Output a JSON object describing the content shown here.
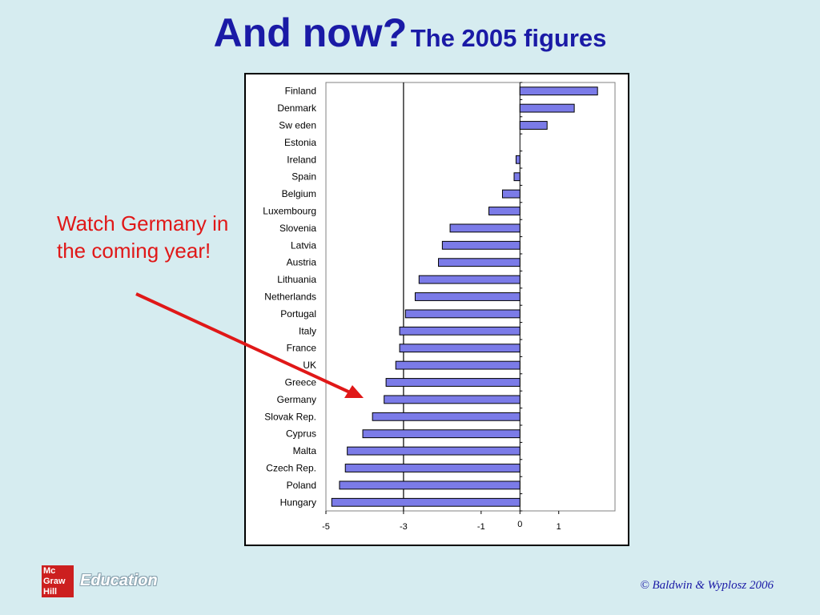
{
  "slide": {
    "title_main": "And now?",
    "title_sub": "The 2005 figures",
    "note": "Watch Germany in the coming year!",
    "logo_lines": [
      "Mc",
      "Graw",
      "Hill"
    ],
    "logo_word": "Education",
    "copyright": "© Baldwin & Wyplosz 2006"
  },
  "colors": {
    "title": "#1a1aa6",
    "note": "#e01818",
    "bar_fill": "#7b7be8",
    "background": "#d6ecf0"
  },
  "chart_data": {
    "type": "bar",
    "orientation": "horizontal",
    "categories": [
      "Finland",
      "Denmark",
      "Sw eden",
      "Estonia",
      "Ireland",
      "Spain",
      "Belgium",
      "Luxembourg",
      "Slovenia",
      "Latvia",
      "Austria",
      "Lithuania",
      "Netherlands",
      "Portugal",
      "Italy",
      "France",
      "UK",
      "Greece",
      "Germany",
      "Slovak Rep.",
      "Cyprus",
      "Malta",
      "Czech Rep.",
      "Poland",
      "Hungary"
    ],
    "values": [
      2.0,
      1.4,
      0.7,
      0.0,
      -0.1,
      -0.15,
      -0.45,
      -0.8,
      -1.8,
      -2.0,
      -2.1,
      -2.6,
      -2.7,
      -2.95,
      -3.1,
      -3.1,
      -3.2,
      -3.45,
      -3.5,
      -3.8,
      -4.05,
      -4.45,
      -4.5,
      -4.65,
      -4.85
    ],
    "x_ticks": [
      -5,
      -3,
      -1,
      0,
      1
    ],
    "x_tick_labels": [
      "-5",
      "-3",
      "-1",
      "0",
      "1"
    ],
    "xlim": [
      -5,
      2.45
    ],
    "reference_line": -3,
    "grid": false,
    "legend": "none"
  }
}
